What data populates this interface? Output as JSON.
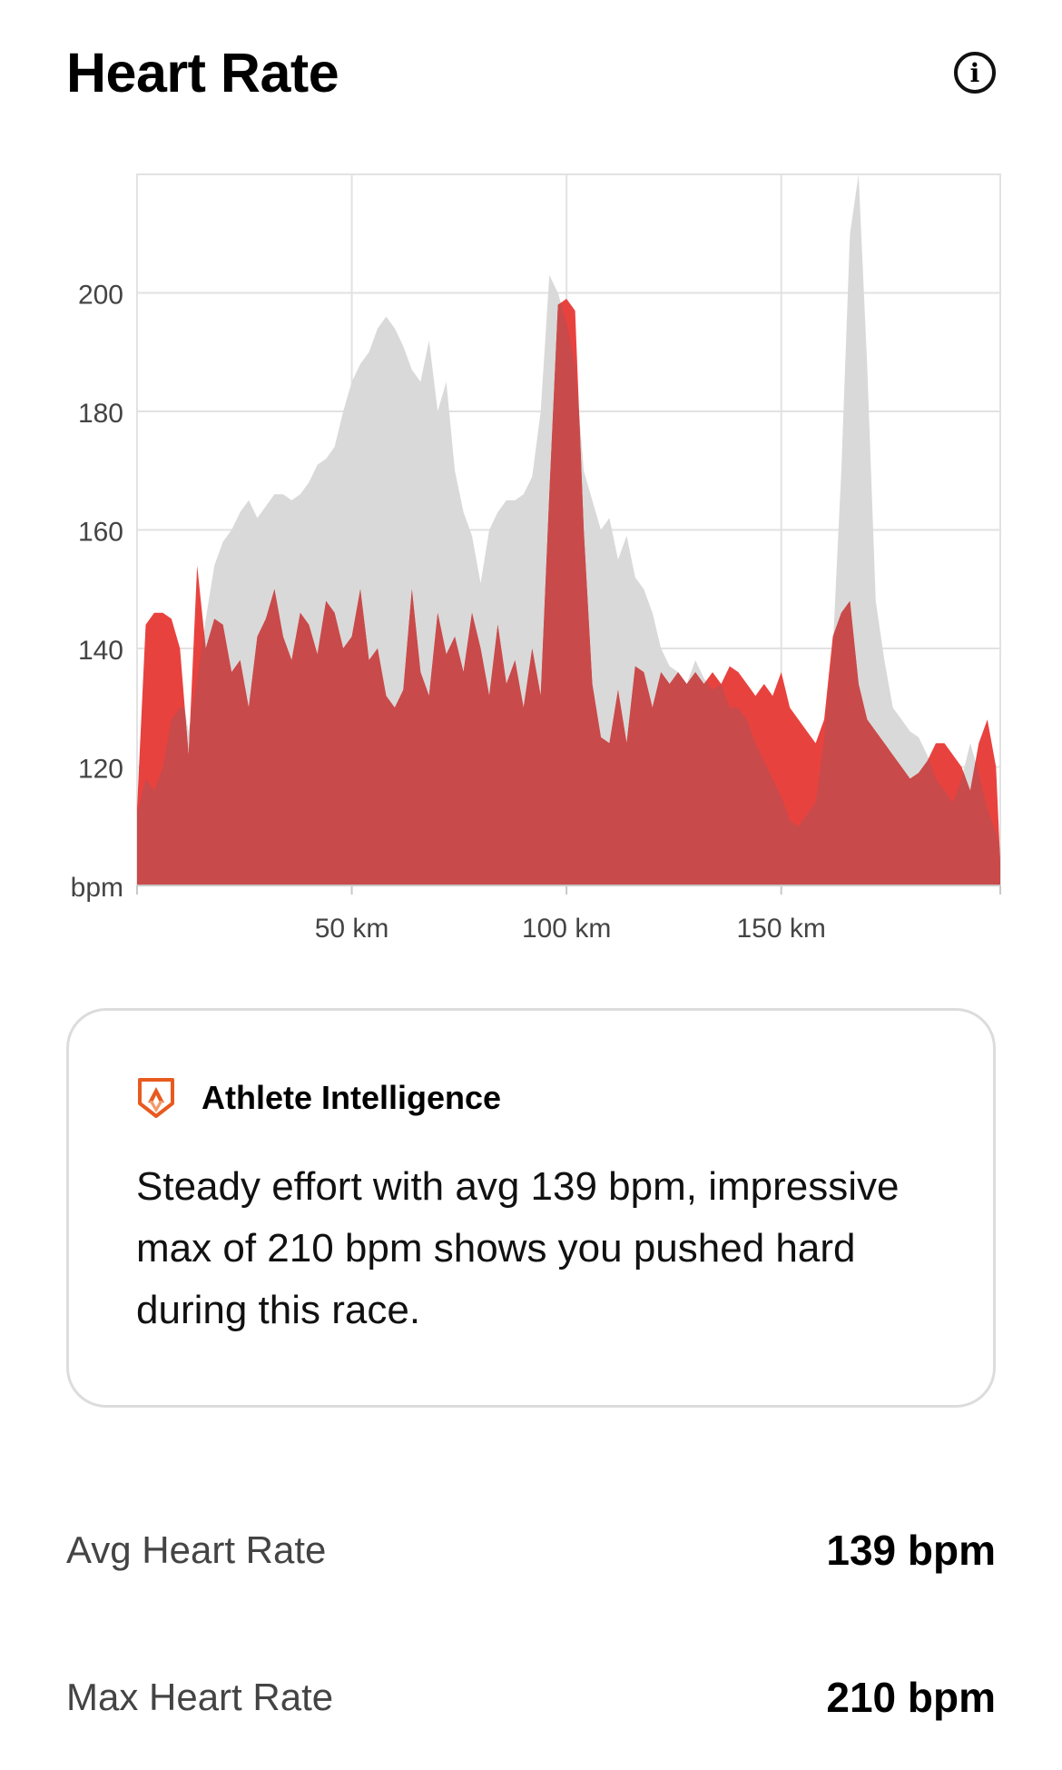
{
  "header": {
    "title": "Heart Rate",
    "info_icon": "info-icon"
  },
  "chart_data": {
    "type": "area",
    "xlabel": "",
    "ylabel": "bpm",
    "x_tick_labels": [
      "50 km",
      "100 km",
      "150 km"
    ],
    "x_ticks": [
      50,
      100,
      150
    ],
    "y_ticks": [
      120,
      140,
      160,
      180,
      200
    ],
    "y_unit_label": "bpm",
    "xlim": [
      0,
      201
    ],
    "ylim": [
      100,
      220
    ],
    "grid": true,
    "colors": {
      "comparison": "#d9d9d9",
      "current": "#e8423f",
      "overlap": "#c94a4a"
    },
    "series": [
      {
        "key": "comparison",
        "x": [
          0,
          2,
          4,
          6,
          8,
          10,
          11,
          12,
          14,
          16,
          18,
          20,
          22,
          24,
          26,
          28,
          30,
          32,
          34,
          36,
          38,
          40,
          42,
          44,
          46,
          48,
          50,
          52,
          54,
          56,
          58,
          60,
          62,
          64,
          66,
          68,
          70,
          72,
          74,
          76,
          78,
          80,
          82,
          84,
          86,
          88,
          90,
          92,
          94,
          96,
          98,
          100,
          102,
          104,
          106,
          108,
          110,
          112,
          114,
          116,
          118,
          120,
          122,
          124,
          126,
          128,
          130,
          132,
          134,
          136,
          138,
          140,
          142,
          144,
          146,
          148,
          150,
          152,
          154,
          156,
          158,
          160,
          162,
          164,
          166,
          168,
          170,
          172,
          174,
          176,
          178,
          180,
          182,
          184,
          186,
          188,
          190,
          192,
          194,
          196,
          198,
          200,
          201
        ],
        "y": [
          112,
          118,
          116,
          120,
          128,
          130,
          130,
          126,
          135,
          145,
          154,
          158,
          160,
          163,
          165,
          162,
          164,
          166,
          166,
          165,
          166,
          168,
          171,
          172,
          174,
          180,
          185,
          188,
          190,
          194,
          196,
          194,
          191,
          187,
          185,
          192,
          180,
          185,
          170,
          163,
          159,
          151,
          160,
          163,
          165,
          165,
          166,
          169,
          180,
          203,
          200,
          195,
          188,
          170,
          165,
          160,
          162,
          155,
          159,
          152,
          150,
          146,
          140,
          137,
          136,
          134,
          138,
          135,
          133,
          134,
          130,
          130,
          128,
          124,
          121,
          118,
          115,
          111,
          110,
          112,
          114,
          125,
          140,
          170,
          210,
          220,
          188,
          148,
          138,
          130,
          128,
          126,
          125,
          122,
          118,
          116,
          114,
          118,
          124,
          119,
          113,
          109,
          106
        ]
      },
      {
        "key": "current",
        "x": [
          0,
          2,
          4,
          6,
          8,
          10,
          12,
          14,
          16,
          18,
          20,
          22,
          24,
          26,
          28,
          30,
          32,
          34,
          36,
          38,
          40,
          42,
          44,
          46,
          48,
          50,
          52,
          54,
          56,
          58,
          60,
          62,
          64,
          66,
          68,
          70,
          72,
          74,
          76,
          78,
          80,
          82,
          84,
          86,
          88,
          90,
          92,
          94,
          96,
          98,
          100,
          102,
          104,
          106,
          108,
          110,
          112,
          114,
          116,
          118,
          120,
          122,
          124,
          126,
          128,
          130,
          132,
          134,
          136,
          138,
          140,
          142,
          144,
          146,
          148,
          150,
          152,
          154,
          156,
          158,
          160,
          162,
          164,
          166,
          168,
          170,
          172,
          174,
          176,
          178,
          180,
          182,
          184,
          186,
          188,
          190,
          192,
          194,
          196,
          198,
          200,
          201
        ],
        "y": [
          113,
          144,
          146,
          146,
          145,
          140,
          122,
          154,
          140,
          145,
          144,
          136,
          138,
          130,
          142,
          145,
          150,
          142,
          138,
          146,
          144,
          139,
          148,
          146,
          140,
          142,
          150,
          138,
          140,
          132,
          130,
          133,
          150,
          136,
          132,
          146,
          139,
          142,
          136,
          146,
          140,
          132,
          144,
          134,
          138,
          130,
          140,
          132,
          166,
          198,
          199,
          197,
          160,
          134,
          125,
          124,
          133,
          124,
          137,
          136,
          130,
          136,
          134,
          136,
          134,
          136,
          134,
          136,
          134,
          137,
          136,
          134,
          132,
          134,
          132,
          136,
          130,
          128,
          126,
          124,
          128,
          142,
          146,
          148,
          134,
          128,
          126,
          124,
          122,
          120,
          118,
          119,
          121,
          124,
          124,
          122,
          120,
          116,
          124,
          128,
          120,
          104
        ]
      }
    ]
  },
  "ai_card": {
    "icon": "strava-shield-icon",
    "label": "Athlete Intelligence",
    "text": "Steady effort with avg 139 bpm, impressive max of 210 bpm shows you pushed hard during this race."
  },
  "stats": [
    {
      "label": "Avg Heart Rate",
      "value": "139 bpm"
    },
    {
      "label": "Max Heart Rate",
      "value": "210 bpm"
    }
  ]
}
